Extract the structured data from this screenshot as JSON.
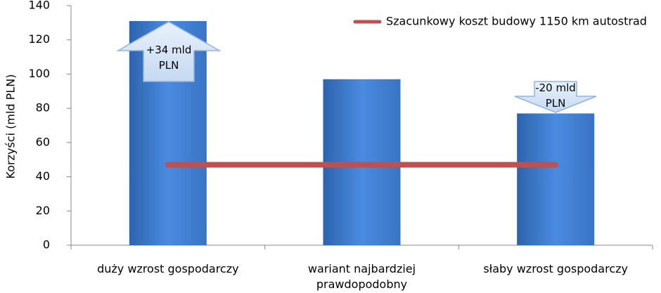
{
  "chart_data": {
    "type": "bar",
    "y_label": "Korzyści  (mld PLN)",
    "categories": [
      "duży wzrost gospodarczy",
      "wariant najbardziej prawdopodobny",
      "słaby wzrost gospodarczy"
    ],
    "values": [
      131,
      97,
      77
    ],
    "color": "#3f78c8",
    "lines": [
      {
        "name": "Szacunkowy koszt budowy 1150 km autostrad",
        "color": "#c0504d",
        "values": [
          47,
          47,
          47
        ]
      }
    ],
    "annotations": [
      "+34 mld PLN",
      "-20 mld PLN"
    ],
    "ylim": [
      0,
      140
    ],
    "yticks": [
      0,
      20,
      40,
      60,
      80,
      100,
      120,
      140
    ],
    "grid": false,
    "legend": "top-right"
  }
}
